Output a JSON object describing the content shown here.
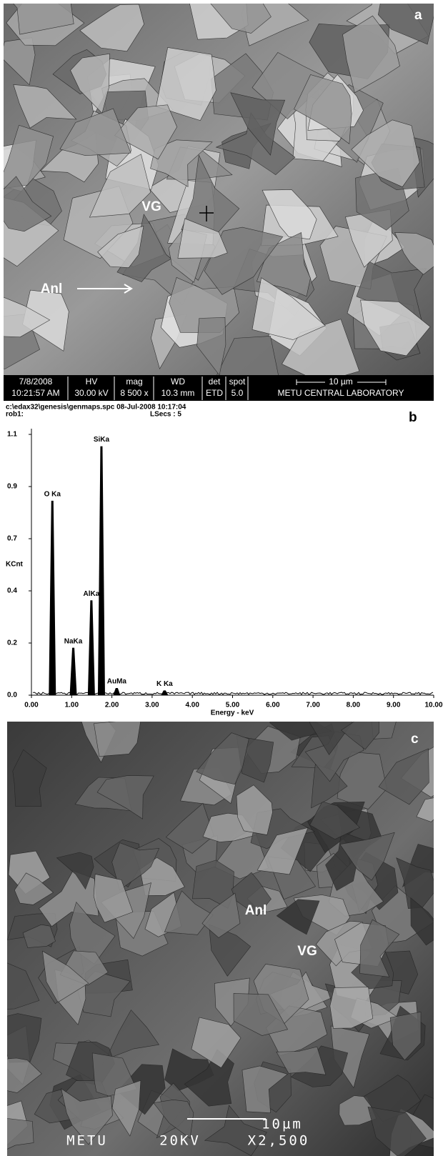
{
  "panel_a": {
    "panel_label": "a",
    "labels": [
      "VG",
      "Anl"
    ],
    "info_bar": {
      "date": "7/8/2008",
      "time": "10:21:57 AM",
      "hv_header": "HV",
      "hv": "30.00 kV",
      "mag_header": "mag",
      "mag": "8 500 x",
      "wd_header": "WD",
      "wd": "10.3 mm",
      "det_header": "det",
      "det": "ETD",
      "spot_header": "spot",
      "spot": "5.0",
      "scale": "10 µm",
      "lab": "METU CENTRAL LABORATORY"
    }
  },
  "panel_b": {
    "panel_label": "b",
    "file": "c:\\edax32\\genesis\\genmaps.spc  08-Jul-2008 10:17:04",
    "sample": "rob1:",
    "lsecs": "LSecs : 5",
    "y_label": "KCnt",
    "x_label": "Energy - keV",
    "xlim": [
      0,
      10
    ],
    "ylim": [
      0,
      1.1
    ],
    "xticks": [
      {
        "value": 0,
        "label": "0.00"
      },
      {
        "value": 1,
        "label": "1.00"
      },
      {
        "value": 2,
        "label": "2.00"
      },
      {
        "value": 3,
        "label": "3.00"
      },
      {
        "value": 4,
        "label": "4.00"
      },
      {
        "value": 5,
        "label": "5.00"
      },
      {
        "value": 6,
        "label": "6.00"
      },
      {
        "value": 7,
        "label": "7.00"
      },
      {
        "value": 8,
        "label": "8.00"
      },
      {
        "value": 9,
        "label": "9.00"
      },
      {
        "value": 10,
        "label": "10.00"
      }
    ],
    "yticks": [
      {
        "value": 0,
        "label": "0.0"
      },
      {
        "value": 0.22,
        "label": "0.2"
      },
      {
        "value": 0.44,
        "label": "0.4"
      },
      {
        "value": 0.66,
        "label": "0.7"
      },
      {
        "value": 0.88,
        "label": "0.9"
      },
      {
        "value": 1.1,
        "label": "1.1"
      }
    ],
    "peaks": [
      {
        "label": "O Ka",
        "energy": 0.52,
        "counts": 0.82
      },
      {
        "label": "NaKa",
        "energy": 1.04,
        "counts": 0.2
      },
      {
        "label": "AlKa",
        "energy": 1.49,
        "counts": 0.4
      },
      {
        "label": "SiKa",
        "energy": 1.74,
        "counts": 1.05
      },
      {
        "label": "AuMa",
        "energy": 2.12,
        "counts": 0.03
      },
      {
        "label": "K Ka",
        "energy": 3.31,
        "counts": 0.02
      }
    ]
  },
  "panel_c": {
    "panel_label": "c",
    "labels": [
      "Anl",
      "VG"
    ],
    "footer": {
      "lab": "METU",
      "voltage": "20KV",
      "mag": "X2,500",
      "scale": "10µm"
    }
  }
}
